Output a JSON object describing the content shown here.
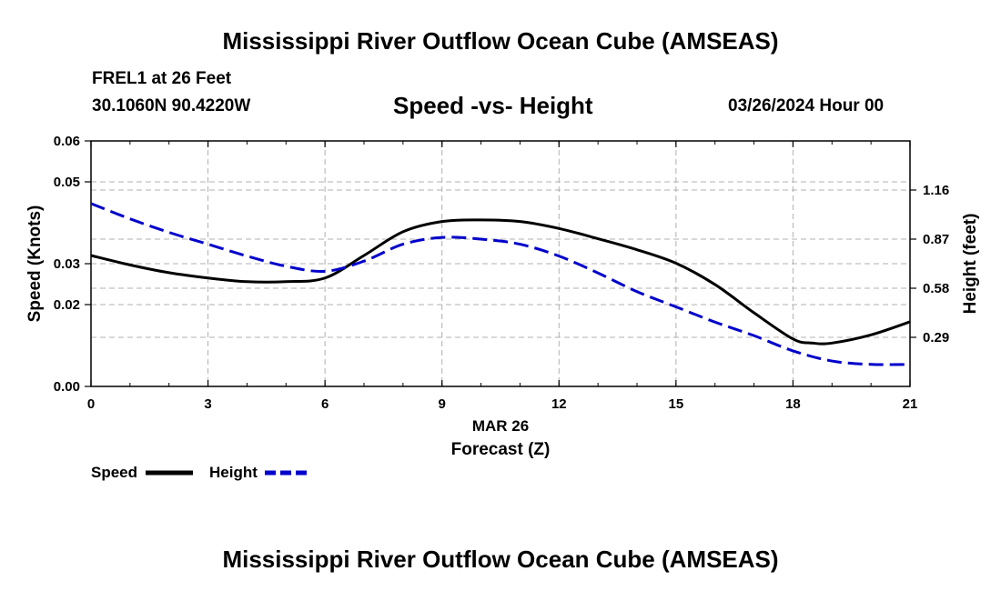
{
  "header": {
    "title": "Mississippi River Outflow Ocean Cube (AMSEAS)",
    "station": "FREL1 at 26 Feet",
    "coords": "30.1060N  90.4220W",
    "subtitle": "Speed -vs- Height",
    "datetime": "03/26/2024 Hour 00"
  },
  "footer": {
    "title": "Mississippi River Outflow Ocean Cube (AMSEAS)"
  },
  "colors": {
    "speed": "#000000",
    "height": "#0000cc",
    "grid": "#b0b0b0"
  },
  "chart_data": {
    "type": "line",
    "title": "Speed -vs- Height",
    "xlabel": "Forecast (Z)",
    "xlabel_date": "MAR 26",
    "ylabel_left": "Speed (Knots)",
    "ylabel_right": "Height (feet)",
    "xlim": [
      0,
      21
    ],
    "ylim_left": [
      0,
      0.06
    ],
    "ylim_right": [
      0,
      1.45
    ],
    "x_ticks": [
      "0",
      "3",
      "6",
      "9",
      "12",
      "15",
      "18",
      "21"
    ],
    "y_left_ticks": [
      "0.00",
      "0.02",
      "0.03",
      "0.05",
      "0.06"
    ],
    "y_right_ticks": [
      "0.29",
      "0.58",
      "0.87",
      "1.16"
    ],
    "legend": [
      "Speed",
      "Height"
    ],
    "series": [
      {
        "name": "Speed",
        "axis": "left",
        "style": "solid",
        "x": [
          0,
          1,
          2,
          3,
          4,
          5,
          6,
          7,
          8,
          9,
          10,
          11,
          12,
          13,
          14,
          15,
          16,
          17,
          18,
          18.5,
          19,
          20,
          21
        ],
        "values": [
          0.032,
          0.0297,
          0.0278,
          0.0265,
          0.0256,
          0.0256,
          0.0265,
          0.032,
          0.0378,
          0.0403,
          0.0407,
          0.0403,
          0.0386,
          0.0361,
          0.0334,
          0.0301,
          0.0249,
          0.018,
          0.0116,
          0.0106,
          0.0106,
          0.0126,
          0.0158
        ]
      },
      {
        "name": "Height",
        "axis": "right",
        "style": "dashed",
        "x": [
          0,
          1,
          2,
          3,
          4,
          5,
          6,
          7,
          8,
          9,
          10,
          11,
          12,
          13,
          14,
          15,
          16,
          17,
          18,
          19,
          20,
          21
        ],
        "values": [
          1.08,
          0.99,
          0.91,
          0.84,
          0.77,
          0.71,
          0.68,
          0.74,
          0.84,
          0.88,
          0.87,
          0.84,
          0.77,
          0.67,
          0.56,
          0.47,
          0.38,
          0.3,
          0.21,
          0.15,
          0.13,
          0.13
        ]
      }
    ]
  }
}
